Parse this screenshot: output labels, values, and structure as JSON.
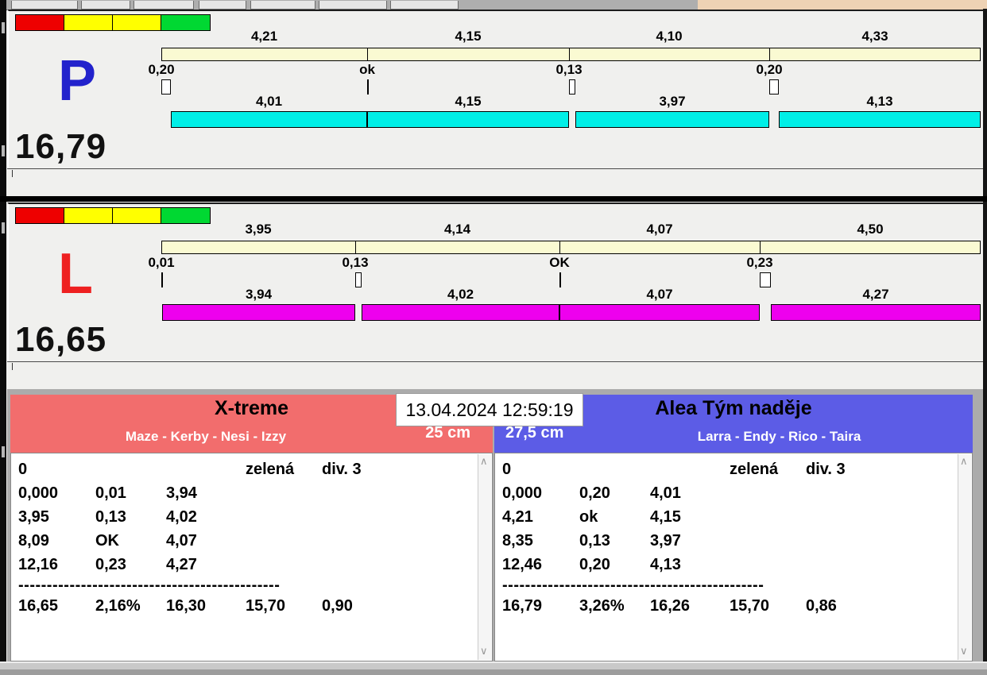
{
  "app": {
    "timestamp": "13.04.2024 12:59:19"
  },
  "lanes": [
    {
      "letter": "P",
      "letter_color": "#2222cc",
      "total": "16,79",
      "run_color": "#00efe7",
      "legend_colors": [
        "#ee0000",
        "#ffff00",
        "#ffff00",
        "#00d832"
      ],
      "splits": [
        {
          "label": "4,21",
          "value": 4.21
        },
        {
          "label": "4,15",
          "value": 4.15
        },
        {
          "label": "4,10",
          "value": 4.1
        },
        {
          "label": "4,33",
          "value": 4.33
        }
      ],
      "gaps": [
        {
          "label": "0,20",
          "value": 0.2
        },
        {
          "label": "ok",
          "value": 0
        },
        {
          "label": "0,13",
          "value": 0.13
        },
        {
          "label": "0,20",
          "value": 0.2
        }
      ],
      "runs": [
        {
          "label": "4,01",
          "value": 4.01
        },
        {
          "label": "4,15",
          "value": 4.15
        },
        {
          "label": "3,97",
          "value": 3.97
        },
        {
          "label": "4,13",
          "value": 4.13
        }
      ]
    },
    {
      "letter": "L",
      "letter_color": "#ee2020",
      "total": "16,65",
      "run_color": "#ee00ee",
      "legend_colors": [
        "#ee0000",
        "#ffff00",
        "#ffff00",
        "#00d832"
      ],
      "splits": [
        {
          "label": "3,95",
          "value": 3.95
        },
        {
          "label": "4,14",
          "value": 4.14
        },
        {
          "label": "4,07",
          "value": 4.07
        },
        {
          "label": "4,50",
          "value": 4.5
        }
      ],
      "gaps": [
        {
          "label": "0,01",
          "value": 0.01
        },
        {
          "label": "0,13",
          "value": 0.13
        },
        {
          "label": "OK",
          "value": 0
        },
        {
          "label": "0,23",
          "value": 0.23
        }
      ],
      "runs": [
        {
          "label": "3,94",
          "value": 3.94
        },
        {
          "label": "4,02",
          "value": 4.02
        },
        {
          "label": "4,07",
          "value": 4.07
        },
        {
          "label": "4,27",
          "value": 4.27
        }
      ]
    }
  ],
  "panels": [
    {
      "team": "X-treme",
      "dogs": "Maze - Kerby - Nesi - Izzy",
      "height": "25 cm",
      "header_color": "#f26d6d",
      "rows": [
        [
          "0",
          "",
          "",
          "zelená",
          "div. 3"
        ],
        [
          "0,000",
          "0,01",
          "3,94",
          "",
          ""
        ],
        [
          "3,95",
          "0,13",
          "4,02",
          "",
          ""
        ],
        [
          "8,09",
          "OK",
          "4,07",
          "",
          ""
        ],
        [
          "12,16",
          "0,23",
          "4,27",
          "",
          ""
        ]
      ],
      "separator": "----------------------------------------------",
      "totals": [
        "16,65",
        "2,16%",
        "16,30",
        "15,70",
        "0,90"
      ]
    },
    {
      "team": "Alea Tým naděje",
      "dogs": "Larra - Endy - Rico - Taira",
      "height": "27,5 cm",
      "header_color": "#5c5ce6",
      "rows": [
        [
          "0",
          "",
          "",
          "zelená",
          "div. 3"
        ],
        [
          "0,000",
          "0,20",
          "4,01",
          "",
          ""
        ],
        [
          "4,21",
          "ok",
          "4,15",
          "",
          ""
        ],
        [
          "8,35",
          "0,13",
          "3,97",
          "",
          ""
        ],
        [
          "12,46",
          "0,20",
          "4,13",
          "",
          ""
        ]
      ],
      "separator": "----------------------------------------------",
      "totals": [
        "16,79",
        "3,26%",
        "16,26",
        "15,70",
        "0,86"
      ]
    }
  ]
}
